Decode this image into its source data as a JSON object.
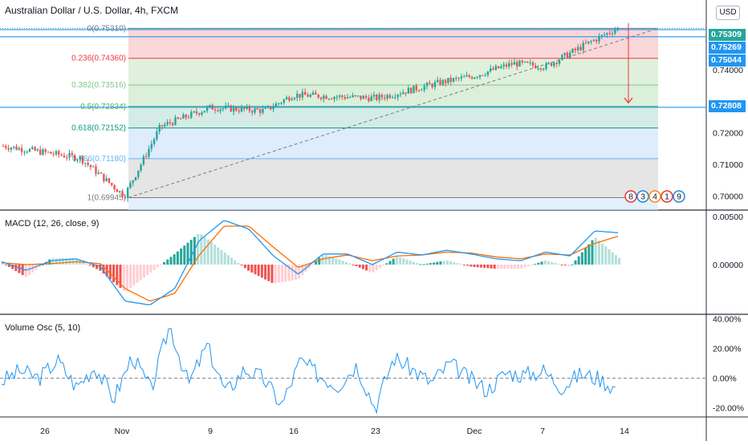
{
  "header": {
    "symbol_title": "Australian Dollar / U.S. Dollar, 4h, FXCM",
    "currency_button": "USD"
  },
  "price_scale": {
    "ticks": [
      "0.74000",
      "0.72000",
      "0.71000",
      "0.70000"
    ]
  },
  "price_tags": [
    {
      "label": "0.75309",
      "color": "#26a69a"
    },
    {
      "label": "0.75269",
      "color": "#2196f3"
    },
    {
      "label": "0.75044",
      "color": "#2196f3"
    },
    {
      "label": "0.72808",
      "color": "#2196f3"
    }
  ],
  "fib_levels": [
    {
      "label": "0(0.75310)",
      "color": "#787b86"
    },
    {
      "label": "0.236(0.74360)",
      "color": "#f23645"
    },
    {
      "label": "0.382(0.73516)",
      "color": "#81c784"
    },
    {
      "label": "0.5(0.72834)",
      "color": "#4caf50"
    },
    {
      "label": "0.618(0.72152)",
      "color": "#089981"
    },
    {
      "label": "0.786(0.71180)",
      "color": "#64b5f6"
    },
    {
      "label": "1(0.69945)",
      "color": "#787b86"
    }
  ],
  "event_badges": [
    "8",
    "3",
    "4",
    "1",
    "9"
  ],
  "macd": {
    "title": "MACD (12, 26, close, 9)",
    "ticks": [
      "0.00500",
      "0.00000"
    ]
  },
  "volume_osc": {
    "title": "Volume Osc (5, 10)",
    "ticks": [
      "40.00%",
      "20.00%",
      "0.00%",
      "-20.00%"
    ]
  },
  "time_axis": {
    "labels": [
      "26",
      "Nov",
      "9",
      "16",
      "23",
      "Dec",
      "7",
      "14"
    ]
  },
  "colors": {
    "up": "#26a69a",
    "down": "#ef5350",
    "macd_line": "#2196f3",
    "signal_line": "#ff6d00",
    "hline": "#2196f3",
    "arrow": "#f23645"
  },
  "chart_data": [
    {
      "type": "candlestick",
      "title": "Australian Dollar / U.S. Dollar, 4h, FXCM",
      "x_axis": [
        "26",
        "Nov",
        "9",
        "16",
        "23",
        "Dec",
        "7",
        "14"
      ],
      "ylim": [
        0.6955,
        0.757
      ],
      "key_points": [
        {
          "t": "Oct 26",
          "close": 0.716
        },
        {
          "t": "Oct 30",
          "close": 0.712
        },
        {
          "t": "Nov 1",
          "close": 0.7
        },
        {
          "t": "Nov 5",
          "close": 0.722
        },
        {
          "t": "Nov 9",
          "close": 0.728
        },
        {
          "t": "Nov 13",
          "close": 0.727
        },
        {
          "t": "Nov 16",
          "close": 0.732
        },
        {
          "t": "Nov 23",
          "close": 0.731
        },
        {
          "t": "Nov 27",
          "close": 0.736
        },
        {
          "t": "Dec 1",
          "close": 0.738
        },
        {
          "t": "Dec 4",
          "close": 0.742
        },
        {
          "t": "Dec 7",
          "close": 0.741
        },
        {
          "t": "Dec 10",
          "close": 0.748
        },
        {
          "t": "Dec 11",
          "close": 0.753
        }
      ],
      "horizontal_lines": [
        0.75309,
        0.75269,
        0.75044,
        0.72808
      ]
    },
    {
      "type": "line",
      "title": "MACD (12, 26, close, 9)",
      "ylim": [
        -0.005,
        0.0055
      ],
      "series": [
        {
          "name": "MACD",
          "values": [
            0.0003,
            -0.0006,
            0.0004,
            0.0006,
            -0.0002,
            -0.0038,
            -0.0042,
            -0.0025,
            0.0025,
            0.0046,
            0.0037,
            0.0009,
            -0.001,
            0.0011,
            0.0011,
            0.0,
            0.0013,
            0.001,
            0.0015,
            0.0011,
            0.0006,
            0.0004,
            0.0013,
            0.0009,
            0.0035,
            0.0033
          ]
        },
        {
          "name": "Signal",
          "values": [
            0.0002,
            0.0,
            0.0001,
            0.0003,
            0.0001,
            -0.0025,
            -0.0038,
            -0.003,
            0.001,
            0.004,
            0.004,
            0.0018,
            -0.0003,
            0.0006,
            0.001,
            0.0004,
            0.0009,
            0.001,
            0.0013,
            0.0012,
            0.0008,
            0.0006,
            0.0011,
            0.001,
            0.0022,
            0.003
          ]
        }
      ]
    },
    {
      "type": "line",
      "title": "Volume Osc (5, 10)",
      "ylim": [
        -25,
        42
      ],
      "series": [
        {
          "name": "Volume Osc",
          "values": [
            -2,
            5,
            0,
            12,
            -6,
            8,
            -14,
            15,
            -8,
            36,
            -4,
            22,
            -10,
            6,
            0,
            -18,
            12,
            2,
            -5,
            9,
            -20,
            14,
            6,
            -3,
            10,
            0,
            -8,
            4,
            2,
            5,
            -6,
            3,
            0,
            -8
          ]
        }
      ]
    }
  ]
}
